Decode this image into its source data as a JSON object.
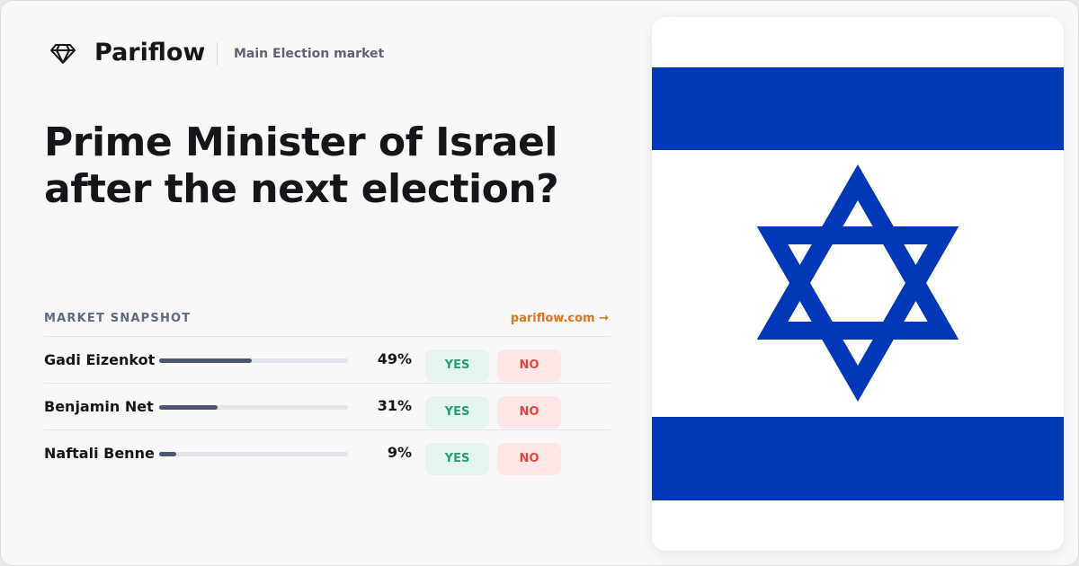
{
  "header": {
    "brand": "Pariflow",
    "subtitle": "Main Election market"
  },
  "title": [
    "Prime Minister of Israel",
    "after the next election?"
  ],
  "market": {
    "label": "MARKET SNAPSHOT",
    "link": "pariflow.com →",
    "names": [
      "Gadi Eizenkot",
      "Benjamin Net",
      "Naftali Benne"
    ],
    "values": [
      49,
      31,
      9
    ],
    "value_labels": [
      "49%",
      "31%",
      "9%"
    ],
    "xlim": [
      0,
      100
    ],
    "yes": "YES",
    "no": "NO"
  }
}
